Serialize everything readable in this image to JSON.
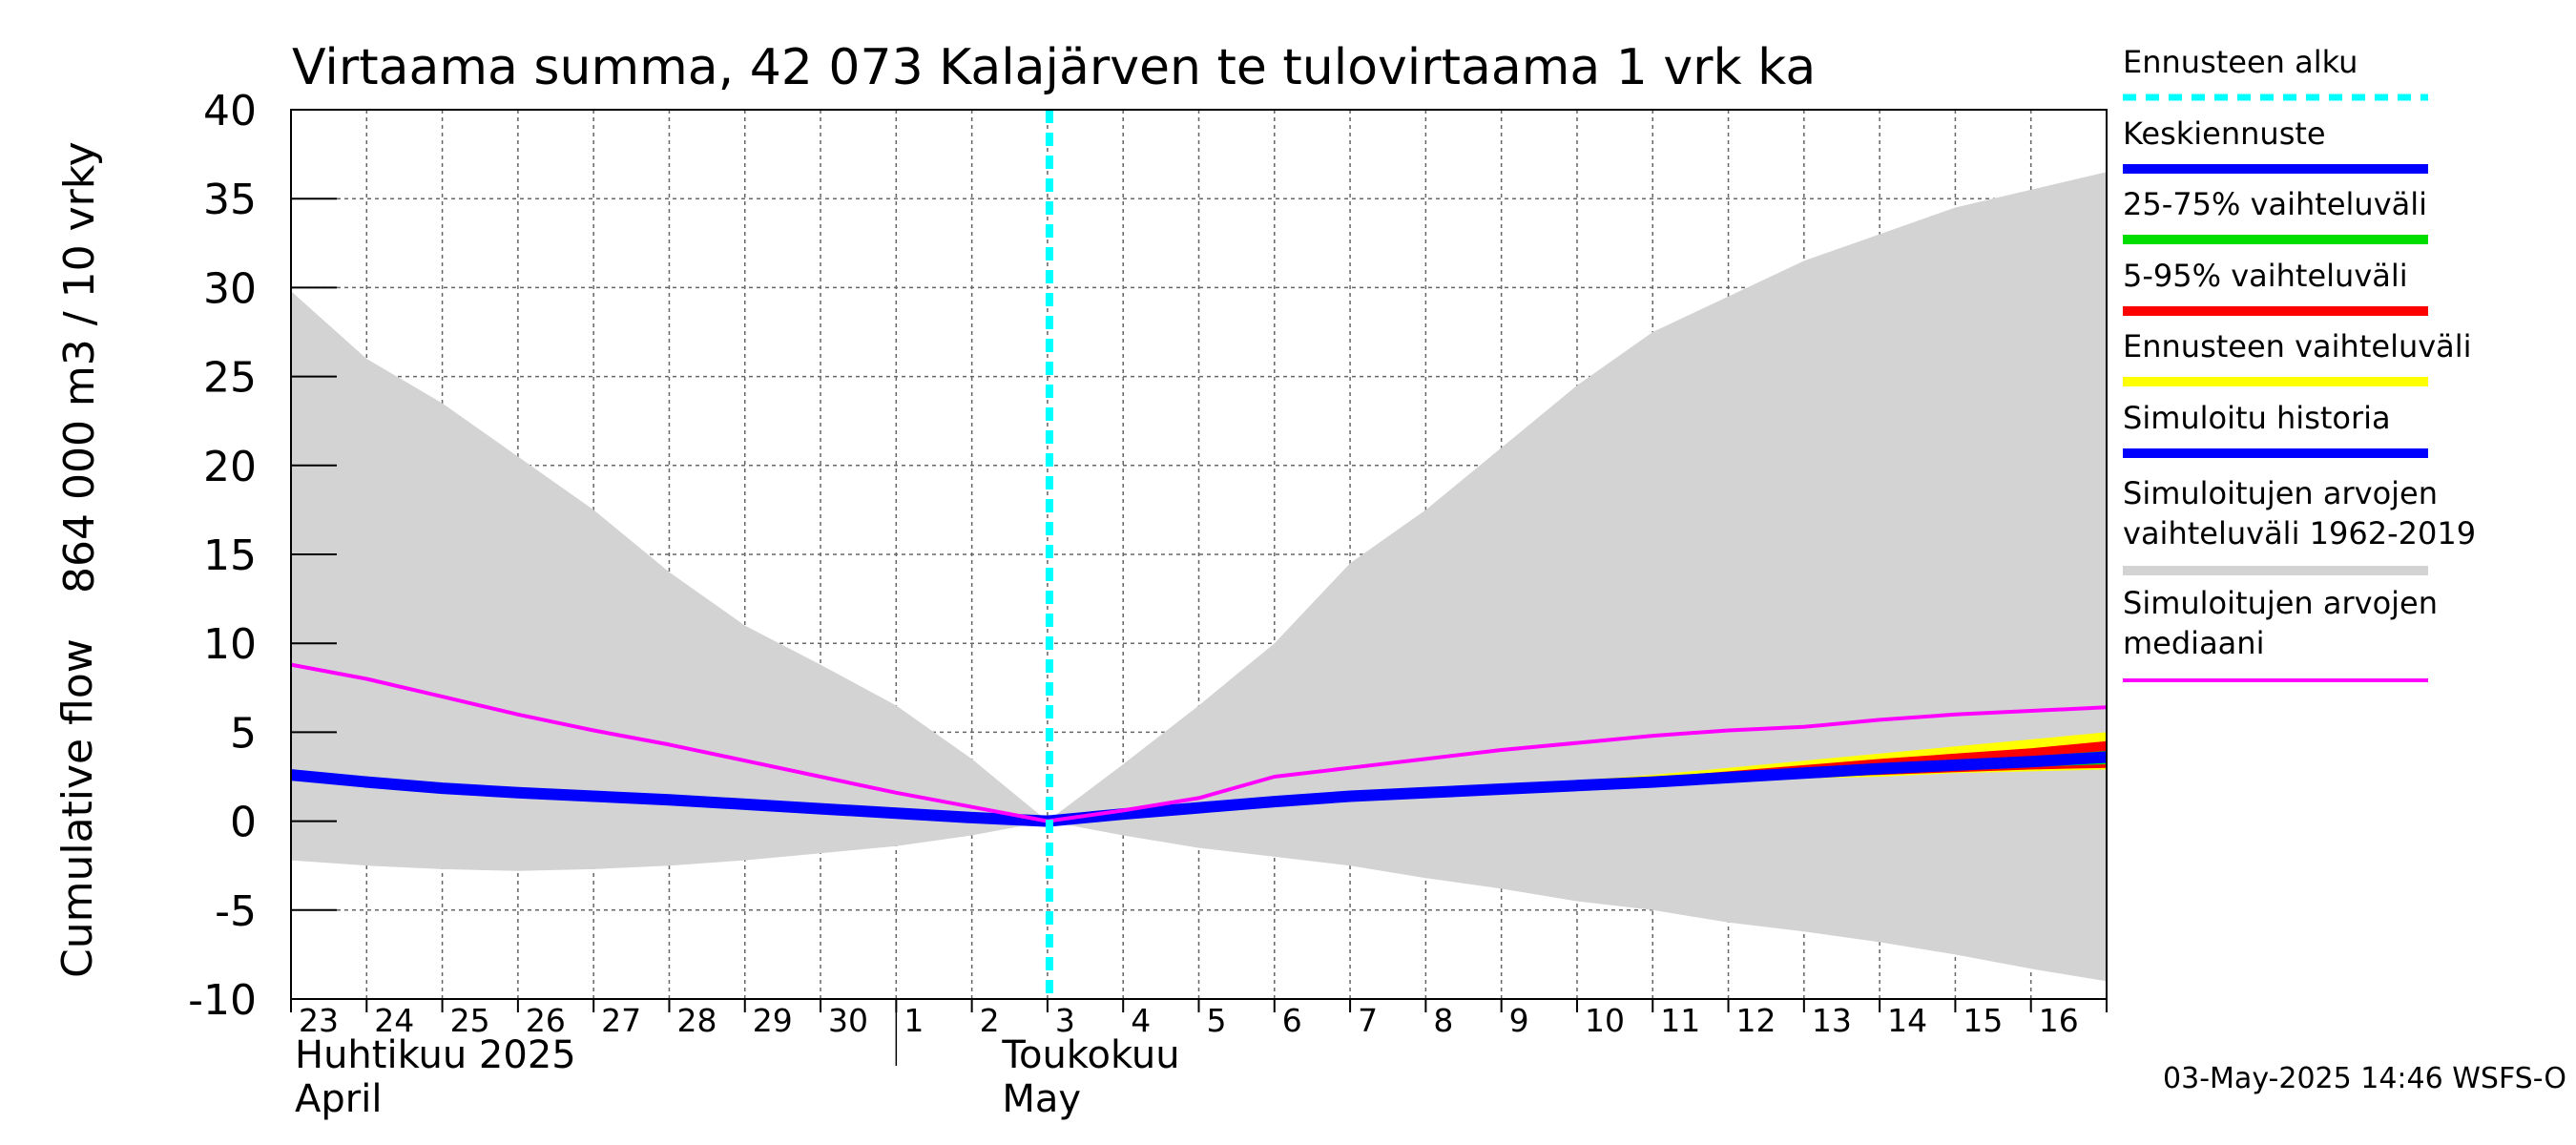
{
  "chart_data": {
    "type": "area",
    "title": "Virtaama summa, 42 073 Kalajärven te tulovirtaama 1 vrk ka",
    "ylabel_left": "Cumulative flow",
    "ylabel_right": "864 000 m3 / 10 vrky",
    "ylim": [
      -10,
      40
    ],
    "yticks": [
      -10,
      -5,
      0,
      5,
      10,
      15,
      20,
      25,
      30,
      35,
      40
    ],
    "grid": true,
    "x_days": [
      "23",
      "24",
      "25",
      "26",
      "27",
      "28",
      "29",
      "30",
      "1",
      "2",
      "3",
      "4",
      "5",
      "6",
      "7",
      "8",
      "9",
      "10",
      "11",
      "12",
      "13",
      "14",
      "15",
      "16"
    ],
    "month_labels": [
      {
        "fi": "Huhtikuu  2025",
        "en": "April"
      },
      {
        "fi": "Toukokuu",
        "en": "May"
      }
    ],
    "forecast_start_x": 10,
    "series": [
      {
        "name": "Simuloitujen arvojen vaihteluväli 1962-2019",
        "kind": "band",
        "x": [
          0,
          1,
          2,
          3,
          4,
          5,
          6,
          7,
          8,
          9,
          10,
          11,
          12,
          13,
          14,
          15,
          16,
          17,
          18,
          19,
          20,
          21,
          22,
          23,
          24
        ],
        "upper": [
          29.8,
          26,
          23.5,
          20.5,
          17.5,
          14,
          11,
          8.8,
          6.5,
          3.5,
          0,
          3.2,
          6.5,
          10,
          14.5,
          17.5,
          21,
          24.5,
          27.5,
          29.5,
          31.5,
          33,
          34.5,
          35.5,
          36.5
        ],
        "lower": [
          -2.2,
          -2.5,
          -2.7,
          -2.8,
          -2.7,
          -2.5,
          -2.2,
          -1.8,
          -1.4,
          -0.8,
          0,
          -0.8,
          -1.5,
          -2,
          -2.5,
          -3.2,
          -3.8,
          -4.5,
          -5,
          -5.7,
          -6.2,
          -6.8,
          -7.5,
          -8.3,
          -9
        ]
      },
      {
        "name": "Ennusteen vaihteluväli",
        "kind": "band",
        "color": "#ffff00",
        "x": [
          10,
          11,
          12,
          13,
          14,
          15,
          16,
          17,
          18,
          19,
          20,
          21,
          22,
          23,
          24
        ],
        "upper": [
          0,
          0.5,
          0.9,
          1.3,
          1.6,
          1.8,
          2.0,
          2.3,
          2.6,
          3.0,
          3.4,
          3.8,
          4.2,
          4.6,
          5.0
        ],
        "lower": [
          0,
          0.3,
          0.6,
          0.9,
          1.2,
          1.4,
          1.6,
          1.8,
          2.0,
          2.2,
          2.4,
          2.5,
          2.7,
          2.8,
          2.9
        ]
      },
      {
        "name": "5-95% vaihteluväli",
        "kind": "band",
        "color": "#ff0000",
        "x": [
          10,
          11,
          12,
          13,
          14,
          15,
          16,
          17,
          18,
          19,
          20,
          21,
          22,
          23,
          24
        ],
        "upper": [
          0,
          0.45,
          0.85,
          1.25,
          1.55,
          1.75,
          1.95,
          2.2,
          2.45,
          2.8,
          3.15,
          3.5,
          3.8,
          4.1,
          4.5
        ],
        "lower": [
          0,
          0.35,
          0.65,
          0.95,
          1.25,
          1.45,
          1.65,
          1.85,
          2.05,
          2.25,
          2.45,
          2.6,
          2.75,
          2.9,
          3.0
        ]
      },
      {
        "name": "25-75% vaihteluväli",
        "kind": "band",
        "color": "#00dd00",
        "x": [
          10,
          11,
          12,
          13,
          14,
          15,
          16,
          17,
          18,
          19,
          20,
          21,
          22,
          23,
          24
        ],
        "upper": [
          0,
          0.42,
          0.8,
          1.18,
          1.48,
          1.68,
          1.88,
          2.1,
          2.32,
          2.6,
          2.9,
          3.15,
          3.4,
          3.65,
          3.95
        ],
        "lower": [
          0,
          0.38,
          0.7,
          1.02,
          1.32,
          1.52,
          1.72,
          1.92,
          2.12,
          2.32,
          2.55,
          2.72,
          2.88,
          3.05,
          3.2
        ]
      },
      {
        "name": "Keskiennuste",
        "kind": "line",
        "color": "#0000ff",
        "x": [
          10,
          11,
          12,
          13,
          14,
          15,
          16,
          17,
          18,
          19,
          20,
          21,
          22,
          23,
          24
        ],
        "values": [
          0,
          0.4,
          0.75,
          1.1,
          1.4,
          1.6,
          1.8,
          2.0,
          2.2,
          2.45,
          2.7,
          2.95,
          3.15,
          3.35,
          3.6
        ]
      },
      {
        "name": "Simuloitu historia",
        "kind": "line",
        "color": "#0000ff",
        "x": [
          0,
          1,
          2,
          3,
          4,
          5,
          6,
          7,
          8,
          9,
          10
        ],
        "values": [
          2.6,
          2.2,
          1.85,
          1.6,
          1.4,
          1.2,
          0.95,
          0.7,
          0.45,
          0.2,
          0
        ]
      },
      {
        "name": "Simuloitujen arvojen mediaani",
        "kind": "line",
        "color": "#ff00ff",
        "x": [
          0,
          1,
          2,
          3,
          4,
          5,
          6,
          7,
          8,
          9,
          10,
          11,
          12,
          13,
          14,
          15,
          16,
          17,
          18,
          19,
          20,
          21,
          22,
          23,
          24
        ],
        "values": [
          8.8,
          8,
          7,
          6,
          5.1,
          4.3,
          3.4,
          2.5,
          1.6,
          0.8,
          0,
          0.6,
          1.3,
          2.5,
          3,
          3.5,
          4,
          4.4,
          4.8,
          5.1,
          5.3,
          5.7,
          6,
          6.2,
          6.4
        ]
      }
    ],
    "legend": [
      {
        "label": "Ennusteen alku",
        "color": "#00ffff",
        "style": "dashed"
      },
      {
        "label": "Keskiennuste",
        "color": "#0000ff"
      },
      {
        "label": "25-75% vaihteluväli",
        "color": "#00dd00"
      },
      {
        "label": "5-95% vaihteluväli",
        "color": "#ff0000"
      },
      {
        "label": "Ennusteen vaihteluväli",
        "color": "#ffff00"
      },
      {
        "label": "Simuloitu historia",
        "color": "#0000ff"
      },
      {
        "label": "Simuloitujen arvojen",
        "label2": "vaihteluväli 1962-2019",
        "color": "#d3d3d3"
      },
      {
        "label": "Simuloitujen arvojen",
        "label2": "mediaani",
        "color": "#ff00ff"
      }
    ],
    "timestamp": "03-May-2025 14:46 WSFS-O"
  }
}
